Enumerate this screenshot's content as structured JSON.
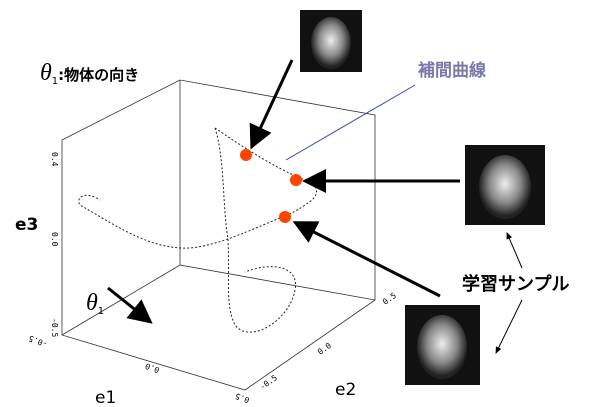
{
  "title": {
    "symbol": "θ",
    "subscript": "1",
    "text": ":物体の向き"
  },
  "interpolation_label": "補間曲線",
  "samples_label": "学習サンプル",
  "arrow_label": {
    "symbol": "θ",
    "subscript": "1"
  },
  "axes": {
    "e1": "e1",
    "e2": "e2",
    "e3": "e3",
    "e3_ticks": [
      "0.4",
      "0.0",
      "-0.5"
    ],
    "e1_ticks": [
      "-0.5",
      "0.0",
      "0.5"
    ],
    "e2_ticks": [
      "0.5",
      "0.0",
      "-0.5"
    ]
  }
}
